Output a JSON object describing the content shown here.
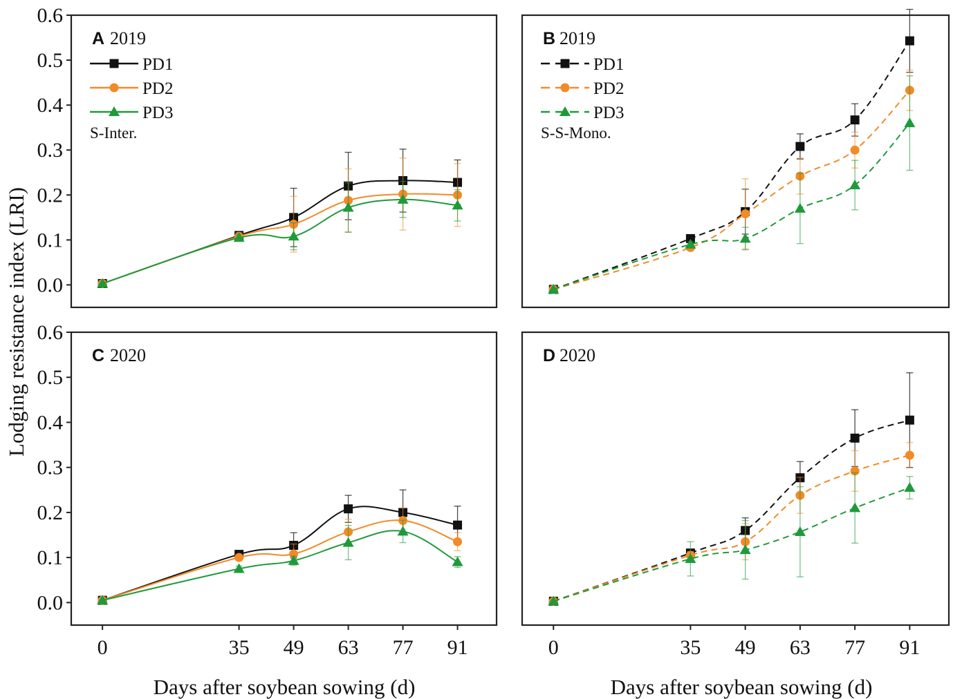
{
  "figure": {
    "ylabel": "Lodging resistance index (LRI)",
    "xlabel": "Days after soybean sowing (d)"
  },
  "chart_data": [
    {
      "type": "line",
      "panel": "A",
      "year": "2019",
      "system": "S-Inter.",
      "line_style": "solid",
      "x": [
        0,
        35,
        49,
        63,
        77,
        91
      ],
      "xticks": [
        "0",
        "35",
        "49",
        "63",
        "77",
        "91"
      ],
      "yticks": [
        "0.0",
        "0.1",
        "0.2",
        "0.3",
        "0.4",
        "0.5",
        "0.6"
      ],
      "ylim": [
        -0.05,
        0.6
      ],
      "xlim": [
        -8,
        101
      ],
      "series": [
        {
          "name": "PD1",
          "color": "#111111",
          "marker": "square",
          "values": [
            0.003,
            0.11,
            0.15,
            0.22,
            0.232,
            0.228
          ],
          "err": [
            0.0,
            0.008,
            0.065,
            0.075,
            0.07,
            0.05
          ]
        },
        {
          "name": "PD2",
          "color": "#f28a26",
          "marker": "circle",
          "values": [
            0.003,
            0.108,
            0.135,
            0.188,
            0.202,
            0.2
          ],
          "err": [
            0.0,
            0.008,
            0.062,
            0.07,
            0.08,
            0.07
          ]
        },
        {
          "name": "PD3",
          "color": "#1f9a3a",
          "marker": "triangle",
          "values": [
            0.003,
            0.105,
            0.108,
            0.172,
            0.19,
            0.177
          ],
          "err": [
            0.0,
            0.008,
            0.03,
            0.055,
            0.04,
            0.035
          ]
        }
      ]
    },
    {
      "type": "line",
      "panel": "B",
      "year": "2019",
      "system": "S-S-Mono.",
      "line_style": "dashed",
      "x": [
        0,
        35,
        49,
        63,
        77,
        91
      ],
      "xticks": [
        "0",
        "35",
        "49",
        "63",
        "77",
        "91"
      ],
      "yticks": [],
      "ylim": [
        -0.05,
        0.6
      ],
      "xlim": [
        -8,
        101
      ],
      "series": [
        {
          "name": "PD1",
          "color": "#111111",
          "marker": "square",
          "values": [
            -0.01,
            0.103,
            0.163,
            0.308,
            0.367,
            0.543
          ],
          "err": [
            0.0,
            0.006,
            0.05,
            0.028,
            0.036,
            0.07
          ]
        },
        {
          "name": "PD2",
          "color": "#f28a26",
          "marker": "circle",
          "values": [
            -0.01,
            0.083,
            0.158,
            0.242,
            0.3,
            0.433
          ],
          "err": [
            0.0,
            0.006,
            0.078,
            0.04,
            0.04,
            0.045
          ]
        },
        {
          "name": "PD3",
          "color": "#1f9a3a",
          "marker": "triangle",
          "values": [
            -0.01,
            0.09,
            0.103,
            0.17,
            0.222,
            0.36
          ],
          "err": [
            0.0,
            0.006,
            0.025,
            0.078,
            0.055,
            0.105
          ]
        }
      ]
    },
    {
      "type": "line",
      "panel": "C",
      "year": "2020",
      "system": "",
      "line_style": "solid",
      "x": [
        0,
        35,
        49,
        63,
        77,
        91
      ],
      "xticks": [
        "0",
        "35",
        "49",
        "63",
        "77",
        "91"
      ],
      "yticks": [
        "0.0",
        "0.1",
        "0.2",
        "0.3",
        "0.4",
        "0.5",
        "0.6"
      ],
      "ylim": [
        -0.05,
        0.6
      ],
      "xlim": [
        -8,
        101
      ],
      "series": [
        {
          "name": "PD1",
          "color": "#111111",
          "marker": "square",
          "values": [
            0.005,
            0.107,
            0.127,
            0.208,
            0.2,
            0.172
          ],
          "err": [
            0.0,
            0.006,
            0.028,
            0.03,
            0.05,
            0.042
          ]
        },
        {
          "name": "PD2",
          "color": "#f28a26",
          "marker": "circle",
          "values": [
            0.005,
            0.1,
            0.108,
            0.157,
            0.182,
            0.135
          ],
          "err": [
            0.0,
            0.006,
            0.022,
            0.028,
            0.028,
            0.02
          ]
        },
        {
          "name": "PD3",
          "color": "#1f9a3a",
          "marker": "triangle",
          "values": [
            0.005,
            0.075,
            0.093,
            0.133,
            0.158,
            0.09
          ],
          "err": [
            0.0,
            0.006,
            0.01,
            0.038,
            0.025,
            0.012
          ]
        }
      ]
    },
    {
      "type": "line",
      "panel": "D",
      "year": "2020",
      "system": "",
      "line_style": "dashed",
      "x": [
        0,
        35,
        49,
        63,
        77,
        91
      ],
      "xticks": [
        "0",
        "35",
        "49",
        "63",
        "77",
        "91"
      ],
      "yticks": [],
      "ylim": [
        -0.05,
        0.6
      ],
      "xlim": [
        -8,
        101
      ],
      "series": [
        {
          "name": "PD1",
          "color": "#111111",
          "marker": "square",
          "values": [
            0.003,
            0.11,
            0.16,
            0.277,
            0.365,
            0.405
          ],
          "err": [
            0.0,
            0.008,
            0.028,
            0.036,
            0.063,
            0.105
          ]
        },
        {
          "name": "PD2",
          "color": "#f28a26",
          "marker": "circle",
          "values": [
            0.003,
            0.105,
            0.135,
            0.238,
            0.292,
            0.327
          ],
          "err": [
            0.0,
            0.008,
            0.04,
            0.04,
            0.045,
            0.028
          ]
        },
        {
          "name": "PD3",
          "color": "#1f9a3a",
          "marker": "triangle",
          "values": [
            0.003,
            0.097,
            0.117,
            0.157,
            0.21,
            0.255
          ],
          "err": [
            0.0,
            0.038,
            0.065,
            0.1,
            0.078,
            0.025
          ]
        }
      ]
    }
  ]
}
